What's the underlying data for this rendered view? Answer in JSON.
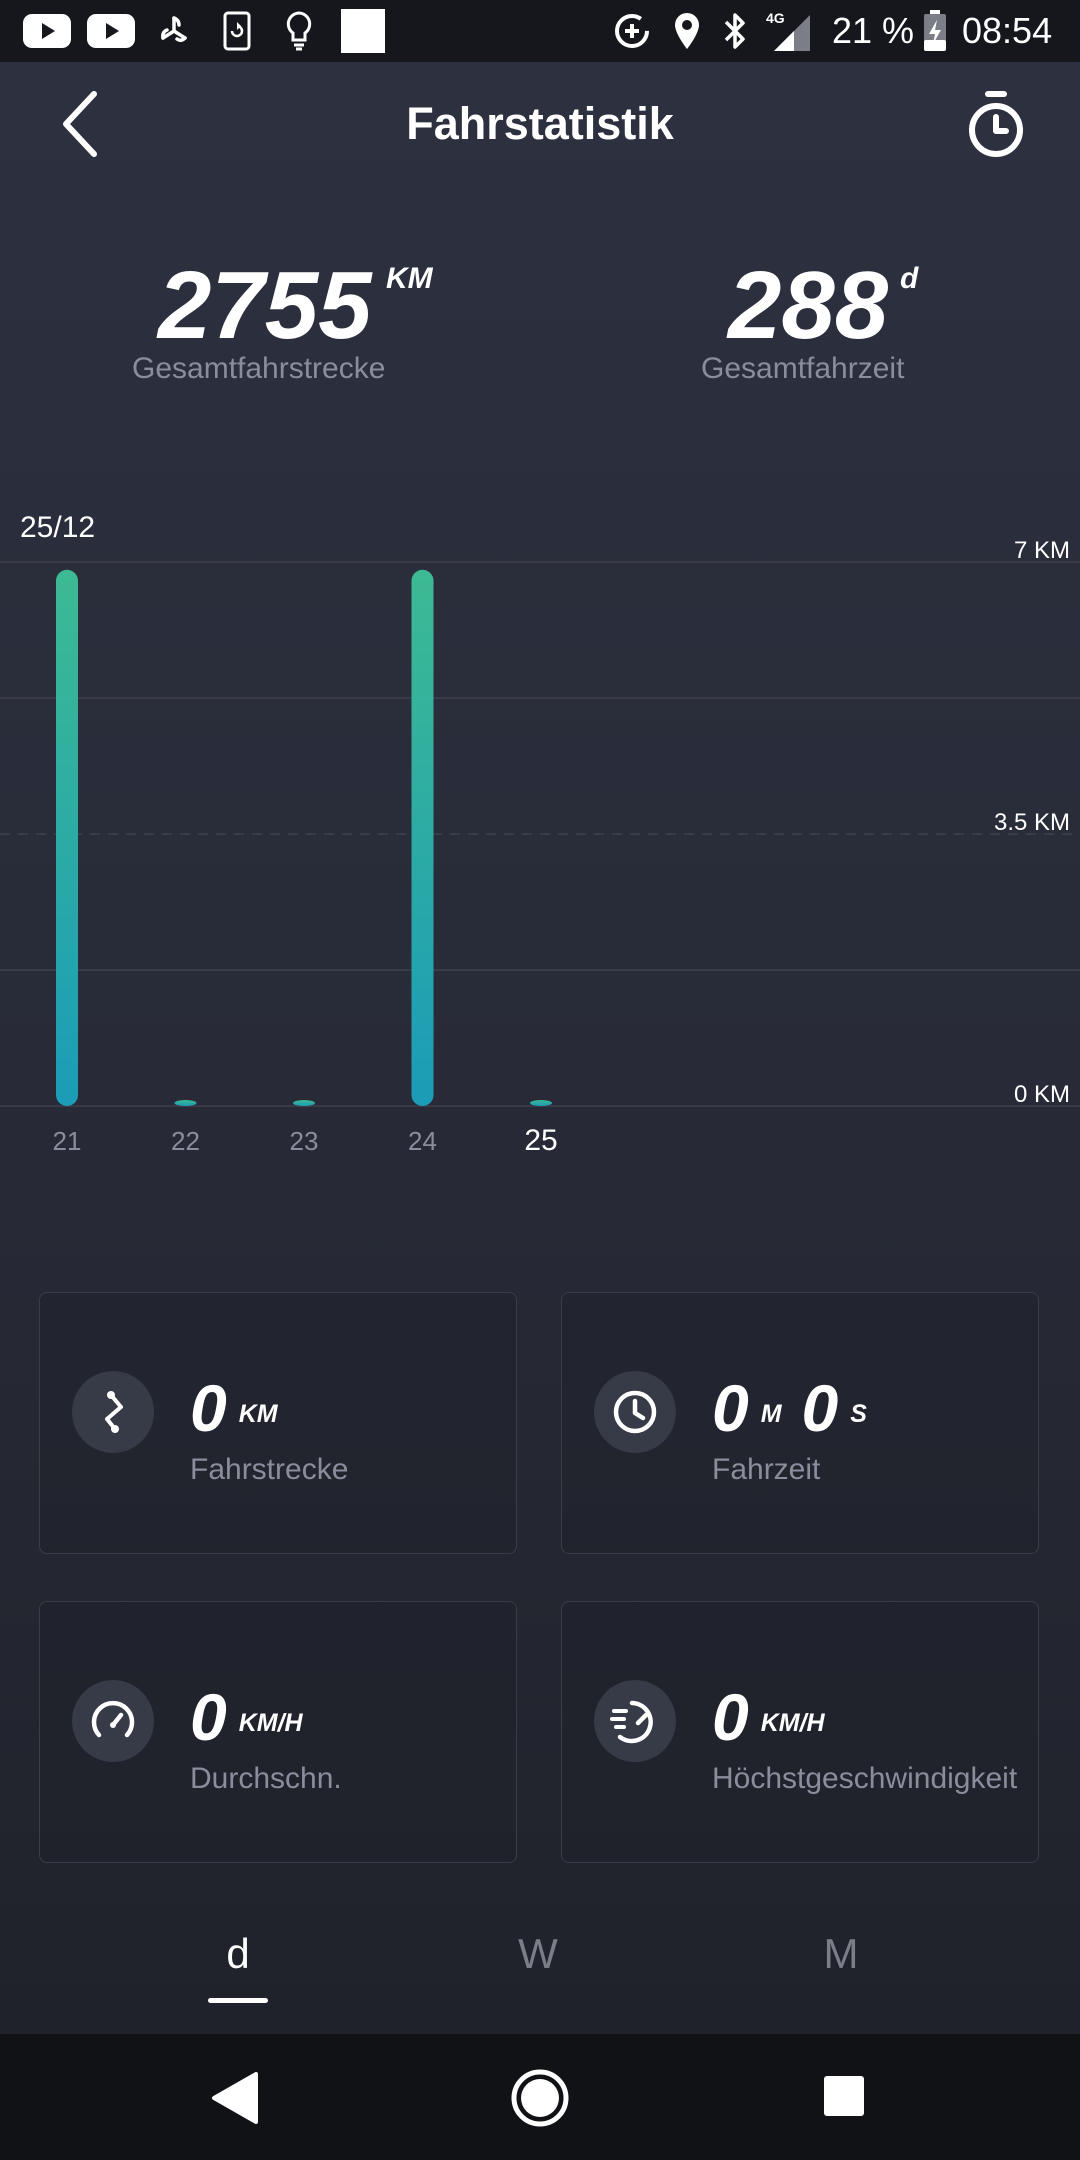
{
  "status_bar": {
    "battery": "21 %",
    "network": "4G",
    "time": "08:54",
    "icons": [
      "youtube-icon",
      "youtube-icon",
      "fan-icon",
      "phone-sync-icon",
      "bulb-icon",
      "white-square-icon",
      "data-saver-icon",
      "location-icon",
      "bluetooth-icon",
      "signal-icon",
      "battery-charging-icon"
    ]
  },
  "header": {
    "title": "Fahrstatistik",
    "back_icon": "back-arrow-icon",
    "timer_icon": "stopwatch-icon"
  },
  "totals": {
    "distance": {
      "value": "2755",
      "unit": "KM",
      "label": "Gesamtfahrstrecke"
    },
    "time": {
      "value": "288",
      "unit": "d",
      "label": "Gesamtfahrzeit"
    }
  },
  "chart_data": {
    "type": "bar",
    "title": "",
    "selected_date": "25/12",
    "categories": [
      "21",
      "22",
      "23",
      "24",
      "25"
    ],
    "selected_category": "25",
    "values": [
      6.9,
      0.05,
      0.05,
      6.9,
      0.05
    ],
    "y_ticks": [
      "7 KM",
      "3.5 KM",
      "0 KM"
    ],
    "ylim": [
      0,
      7
    ],
    "grid": true,
    "colors": {
      "bar_top": "#3dba93",
      "bar_bottom": "#1b9cb7"
    }
  },
  "cards": [
    {
      "value": "0",
      "unit": "KM",
      "label": "Fahrstrecke",
      "icon": "route-icon"
    },
    {
      "value": "0",
      "unit": "M",
      "value2": "0",
      "unit2": "S",
      "label": "Fahrzeit",
      "icon": "clock-icon"
    },
    {
      "value": "0",
      "unit": "KM/H",
      "label": "Durchschn.",
      "icon": "speedometer-icon"
    },
    {
      "value": "0",
      "unit": "KM/H",
      "label": "Höchstgeschwindigkeit",
      "icon": "fast-speed-icon"
    }
  ],
  "tabs": [
    {
      "label": "d",
      "active": true
    },
    {
      "label": "W",
      "active": false
    },
    {
      "label": "M",
      "active": false
    }
  ],
  "nav": {
    "back": "nav-back-icon",
    "home": "nav-home-icon",
    "recents": "nav-recents-icon"
  }
}
